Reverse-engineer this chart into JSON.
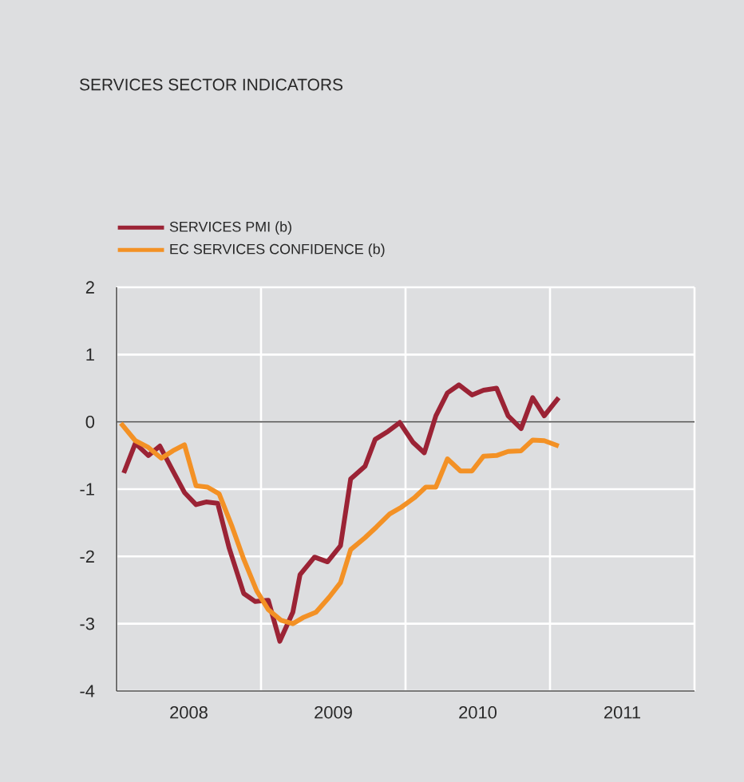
{
  "chart_data": {
    "type": "line",
    "title": "SERVICES SECTOR INDICATORS",
    "xlim": [
      2008,
      2012
    ],
    "ylim": [
      -4,
      2
    ],
    "yticks": [
      -4,
      -3,
      -2,
      -1,
      0,
      1,
      2
    ],
    "xticks": [
      {
        "value": 2008,
        "label": null
      },
      {
        "value": 2009,
        "label": null
      },
      {
        "value": 2010,
        "label": null
      },
      {
        "value": 2011,
        "label": null
      },
      {
        "value": 2012,
        "label": null
      },
      {
        "value": 2008.5,
        "label": "2008"
      },
      {
        "value": 2009.5,
        "label": "2009"
      },
      {
        "value": 2010.5,
        "label": "2010"
      },
      {
        "value": 2011.5,
        "label": "2011"
      }
    ],
    "grid": true,
    "legend": "top left",
    "marker": "none",
    "line_style": "solid",
    "ref_lines": [
      {
        "axis": "y",
        "value": 0,
        "color": "#555555"
      }
    ],
    "series": [
      {
        "name": "SERVICES PMI (b)",
        "color": "#9b2335",
        "x": [
          2008.05,
          2008.13,
          2008.22,
          2008.3,
          2008.39,
          2008.47,
          2008.55,
          2008.62,
          2008.7,
          2008.78,
          2008.88,
          2008.96,
          2009.05,
          2009.13,
          2009.22,
          2009.27,
          2009.37,
          2009.46,
          2009.55,
          2009.62,
          2009.72,
          2009.79,
          2009.88,
          2009.96,
          2010.05,
          2010.13,
          2010.21,
          2010.29,
          2010.37,
          2010.46,
          2010.54,
          2010.63,
          2010.71,
          2010.8,
          2010.88,
          2010.96,
          2011.06
        ],
        "values": [
          -0.76,
          -0.32,
          -0.5,
          -0.36,
          -0.73,
          -1.05,
          -1.23,
          -1.19,
          -1.21,
          -1.88,
          -2.55,
          -2.67,
          -2.65,
          -3.26,
          -2.83,
          -2.27,
          -2.01,
          -2.08,
          -1.84,
          -0.85,
          -0.66,
          -0.26,
          -0.14,
          -0.01,
          -0.3,
          -0.46,
          0.09,
          0.43,
          0.55,
          0.4,
          0.47,
          0.5,
          0.09,
          -0.1,
          0.36,
          0.09,
          0.36
        ]
      },
      {
        "name": "EC SERVICES CONFIDENCE (b)",
        "color": "#f39125",
        "x": [
          2008.03,
          2008.13,
          2008.22,
          2008.31,
          2008.39,
          2008.47,
          2008.55,
          2008.63,
          2008.71,
          2008.8,
          2008.88,
          2008.97,
          2009.05,
          2009.14,
          2009.22,
          2009.29,
          2009.38,
          2009.47,
          2009.55,
          2009.62,
          2009.72,
          2009.8,
          2009.89,
          2009.97,
          2010.06,
          2010.14,
          2010.21,
          2010.29,
          2010.38,
          2010.46,
          2010.54,
          2010.63,
          2010.71,
          2010.8,
          2010.88,
          2010.96,
          2011.06
        ],
        "values": [
          -0.02,
          -0.28,
          -0.38,
          -0.54,
          -0.43,
          -0.34,
          -0.95,
          -0.97,
          -1.07,
          -1.56,
          -2.04,
          -2.51,
          -2.79,
          -2.95,
          -3.0,
          -2.91,
          -2.83,
          -2.61,
          -2.39,
          -1.9,
          -1.72,
          -1.56,
          -1.37,
          -1.27,
          -1.13,
          -0.97,
          -0.97,
          -0.55,
          -0.73,
          -0.73,
          -0.51,
          -0.5,
          -0.44,
          -0.43,
          -0.27,
          -0.28,
          -0.36
        ]
      }
    ]
  }
}
